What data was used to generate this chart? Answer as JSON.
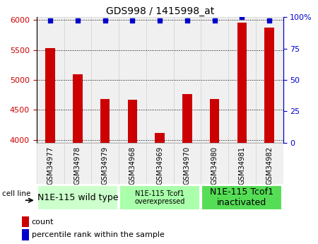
{
  "title": "GDS998 / 1415998_at",
  "samples": [
    "GSM34977",
    "GSM34978",
    "GSM34979",
    "GSM34968",
    "GSM34969",
    "GSM34970",
    "GSM34980",
    "GSM34981",
    "GSM34982"
  ],
  "counts": [
    5530,
    5090,
    4680,
    4670,
    4110,
    4760,
    4680,
    5960,
    5870
  ],
  "percentiles": [
    97,
    97,
    97,
    97,
    97,
    97,
    97,
    100,
    97
  ],
  "ylim_left": [
    3950,
    6050
  ],
  "ylim_right": [
    0,
    100
  ],
  "yticks_left": [
    4000,
    4500,
    5000,
    5500,
    6000
  ],
  "yticks_right": [
    0,
    25,
    50,
    75,
    100
  ],
  "bar_color": "#cc0000",
  "dot_color": "#0000cc",
  "groups": [
    {
      "label": "N1E-115 wild type",
      "start": 0,
      "end": 3,
      "color": "#ccffcc",
      "fontsize": 9
    },
    {
      "label": "N1E-115 Tcof1\noverexpressed",
      "start": 3,
      "end": 6,
      "color": "#aaffaa",
      "fontsize": 7
    },
    {
      "label": "N1E-115 Tcof1\ninactivated",
      "start": 6,
      "end": 9,
      "color": "#55dd55",
      "fontsize": 9
    }
  ],
  "cell_line_label": "cell line",
  "legend_count_label": "count",
  "legend_pct_label": "percentile rank within the sample",
  "grid_color": "#000000",
  "tick_label_color_left": "#cc0000",
  "tick_label_color_right": "#0000cc",
  "bg_color": "#f0f0f0",
  "bar_width": 0.35
}
